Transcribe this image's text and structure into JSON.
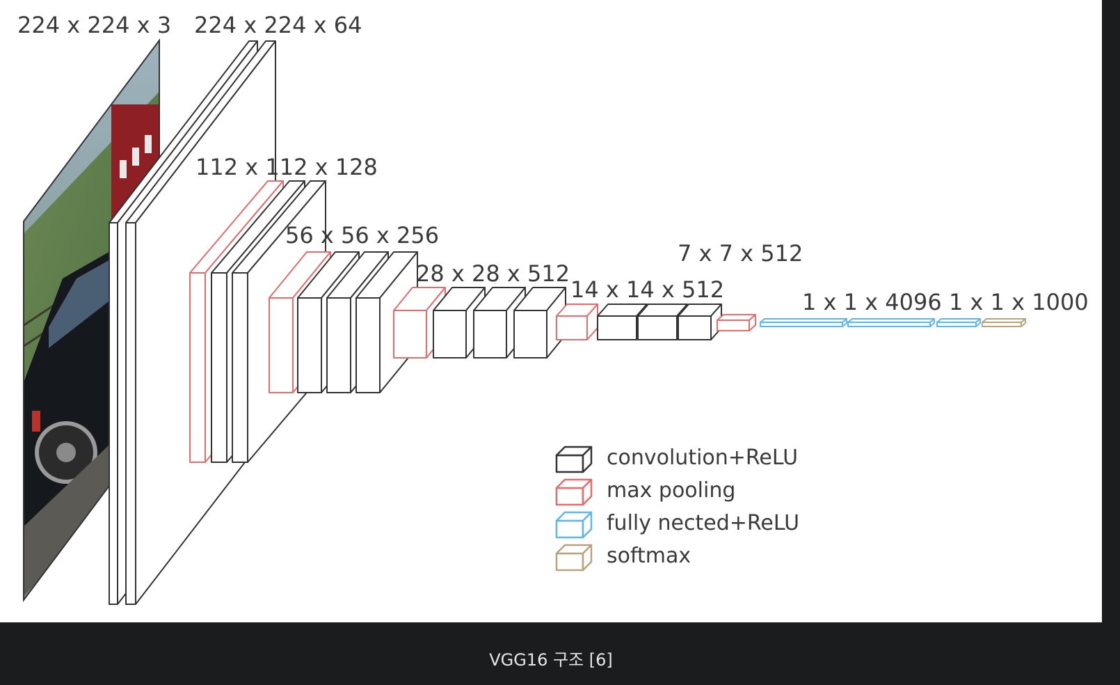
{
  "caption": "VGG16 구조 [6]",
  "colors": {
    "convolution": "#333333",
    "pooling": "#e86a6a",
    "fully_connected": "#5bb8ec",
    "softmax": "#b9a37d",
    "caption_bg": "#1b1c1e"
  },
  "input_image": {
    "icon": "car-photo-icon"
  },
  "dimension_labels": [
    "224 x 224 x 3",
    "224 x 224 x 64",
    "112 x 112 x 128",
    "56 x 56 x 256",
    "28 x 28 x 512",
    "14 x 14 x 512",
    "7 x 7 x 512",
    "1 x 1 x 4096",
    "1 x 1 x 1000"
  ],
  "legend": [
    {
      "type": "convolution",
      "label": "convolution+ReLU"
    },
    {
      "type": "pooling",
      "label": "max pooling"
    },
    {
      "type": "fully_connected",
      "label": "fully nected+ReLU"
    },
    {
      "type": "softmax",
      "label": "softmax"
    }
  ]
}
